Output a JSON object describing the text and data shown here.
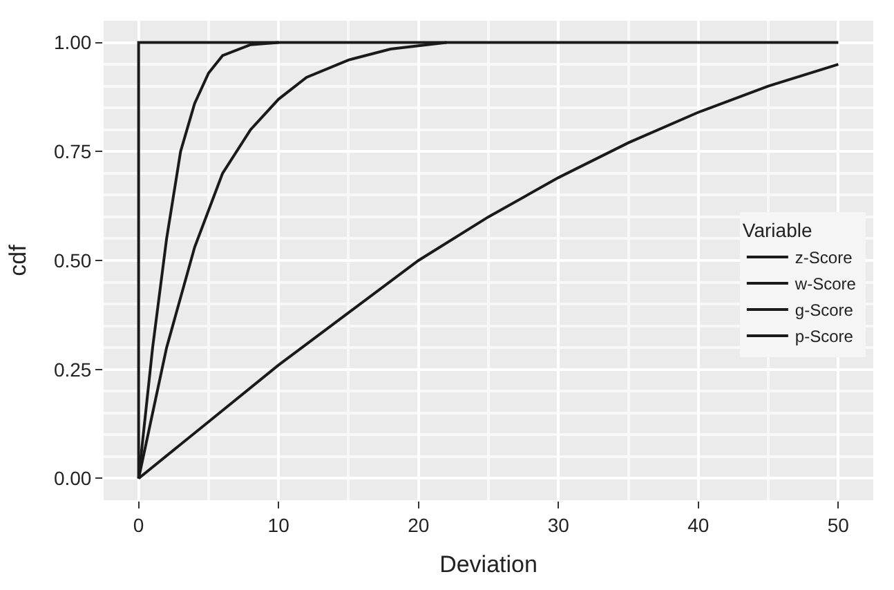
{
  "chart_data": {
    "type": "line",
    "xlabel": "Deviation",
    "ylabel": "cdf",
    "legend_title": "Variable",
    "series": [
      {
        "name": "z-Score",
        "color": "#1a1a1a",
        "x": [
          0,
          0,
          50
        ],
        "values": [
          0,
          1,
          1
        ]
      },
      {
        "name": "w-Score",
        "color": "#1a1a1a",
        "x": [
          0,
          1,
          2,
          3,
          4,
          5,
          6,
          8,
          10
        ],
        "values": [
          0,
          0.3,
          0.55,
          0.75,
          0.86,
          0.93,
          0.97,
          0.995,
          1
        ]
      },
      {
        "name": "g-Score",
        "color": "#1a1a1a",
        "x": [
          0,
          2,
          4,
          6,
          8,
          10,
          12,
          15,
          18,
          22
        ],
        "values": [
          0,
          0.3,
          0.53,
          0.7,
          0.8,
          0.87,
          0.92,
          0.96,
          0.985,
          1
        ]
      },
      {
        "name": "p-Score",
        "color": "#1a1a1a",
        "x": [
          0,
          5,
          10,
          15,
          20,
          25,
          30,
          35,
          40,
          45,
          50
        ],
        "values": [
          0,
          0.13,
          0.26,
          0.38,
          0.5,
          0.6,
          0.69,
          0.77,
          0.84,
          0.9,
          0.95
        ]
      }
    ],
    "xlim": [
      -2.5,
      52.5
    ],
    "xticks": [
      0,
      10,
      20,
      30,
      40,
      50
    ],
    "ylim": [
      -0.05,
      1.05
    ],
    "yticks": [
      {
        "value": 0,
        "label": "0.00"
      },
      {
        "value": 0.25,
        "label": "0.25"
      },
      {
        "value": 0.5,
        "label": "0.50"
      },
      {
        "value": 0.75,
        "label": "0.75"
      },
      {
        "value": 1,
        "label": "1.00"
      }
    ],
    "grid": true,
    "legend": "right",
    "marker": "none",
    "line_style": "solid"
  }
}
